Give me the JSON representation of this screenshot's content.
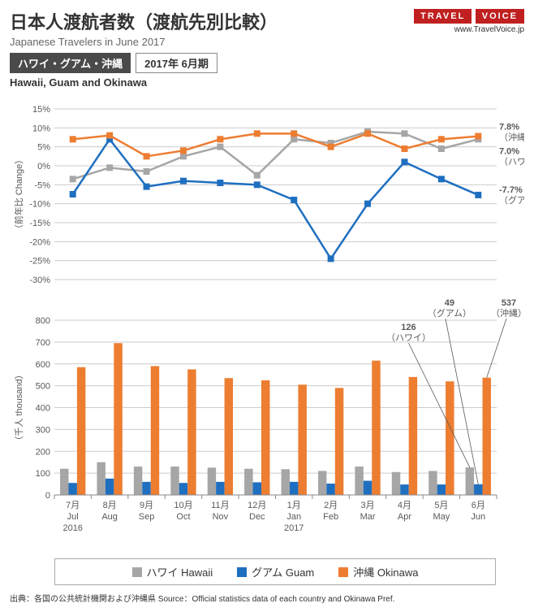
{
  "header": {
    "title_main": "日本人渡航者数（渡航先別比較）",
    "title_sub": "Japanese Travelers in June 2017",
    "badge_dark": "ハワイ・グアム・沖縄",
    "badge_light": "2017年 6月期",
    "sub_en": "Hawaii, Guam and Okinawa",
    "logo_top": "TRAVEL",
    "logo_bottom": "VOICE",
    "logo_url": "www.TravelVoice.jp"
  },
  "colors": {
    "hawaii": "#a6a6a6",
    "guam": "#1f6fc0",
    "okinawa": "#ed7d31",
    "grid": "#cccccc",
    "axis": "#888888",
    "text": "#595959",
    "bg": "#ffffff"
  },
  "line_chart": {
    "y_label_jp": "（前年比",
    "y_label_en": "Change）",
    "ylim": [
      -30,
      15
    ],
    "ytick_step": 5,
    "yticks": [
      "15%",
      "10%",
      "5%",
      "0%",
      "-5%",
      "-10%",
      "-15%",
      "-20%",
      "-25%",
      "-30%"
    ],
    "marker_size": 4,
    "line_width": 2.5,
    "series": {
      "hawaii": [
        -3.5,
        -0.5,
        -1.5,
        2.5,
        5,
        -2.5,
        7,
        6,
        9,
        8.5,
        4.5,
        7
      ],
      "guam": [
        -7.5,
        7,
        -5.5,
        -4,
        -4.5,
        -5,
        -9,
        -24.5,
        -10,
        1,
        -3.5,
        -7.7
      ],
      "okinawa": [
        7,
        8,
        2.5,
        4,
        7,
        8.5,
        8.5,
        5,
        8.5,
        4.5,
        7,
        7.8
      ]
    },
    "end_labels": {
      "okinawa": {
        "value": "7.8%",
        "name": "（沖縄）",
        "color": "#595959"
      },
      "hawaii": {
        "value": "7.0%",
        "name": "（ハワイ）",
        "color": "#595959"
      },
      "guam": {
        "value": "-7.7%",
        "name": "（グアム）",
        "color": "#595959"
      }
    }
  },
  "bar_chart": {
    "y_label_jp": "（千人",
    "y_label_en": "thousand）",
    "ylim": [
      0,
      800
    ],
    "ytick_step": 100,
    "yticks": [
      "800",
      "700",
      "600",
      "500",
      "400",
      "300",
      "200",
      "100",
      "0"
    ],
    "series": {
      "hawaii": [
        120,
        150,
        130,
        130,
        125,
        120,
        118,
        110,
        130,
        105,
        110,
        126
      ],
      "guam": [
        55,
        75,
        60,
        55,
        60,
        58,
        60,
        52,
        65,
        48,
        48,
        49
      ],
      "okinawa": [
        585,
        695,
        590,
        575,
        535,
        525,
        505,
        490,
        615,
        540,
        520,
        537
      ]
    },
    "callouts": {
      "guam": {
        "value": "49",
        "name": "（グアム）"
      },
      "hawaii": {
        "value": "126",
        "name": "（ハワイ）"
      },
      "okinawa": {
        "value": "537",
        "name": "（沖縄）"
      }
    },
    "bar_group_gap": 0.3,
    "bar_width": 0.23
  },
  "x_axis": {
    "months_jp": [
      "7月",
      "8月",
      "9月",
      "10月",
      "11月",
      "12月",
      "1月",
      "2月",
      "3月",
      "4月",
      "5月",
      "6月"
    ],
    "months_en": [
      "Jul",
      "Aug",
      "Sep",
      "Oct",
      "Nov",
      "Dec",
      "Jan",
      "Feb",
      "Mar",
      "Apr",
      "May",
      "Jun"
    ],
    "years": {
      "0": "2016",
      "6": "2017"
    }
  },
  "legend": {
    "hawaii": "ハワイ Hawaii",
    "guam": "グアム Guam",
    "okinawa": "沖縄 Okinawa"
  },
  "footer": "出典：各国の公共統計機関および沖縄県  Source：Official statistics data of each country and Okinawa Pref."
}
